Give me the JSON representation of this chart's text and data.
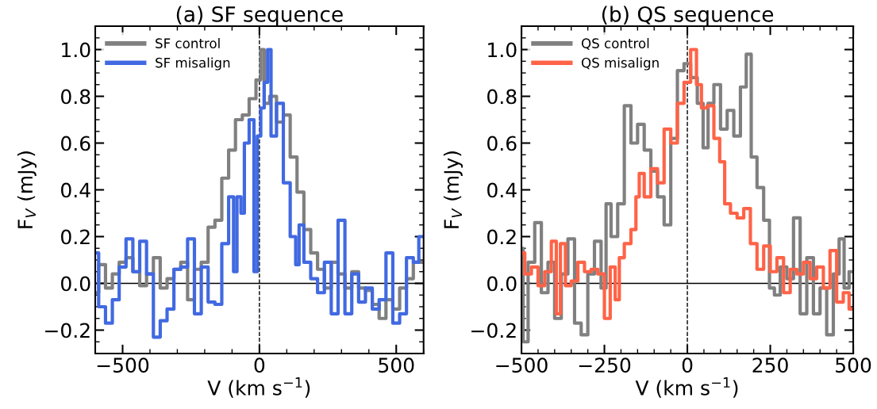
{
  "chart_data": [
    {
      "type": "step",
      "title": "(a) SF sequence",
      "xlabel": "V (km s$^{−1}$)",
      "ylabel": "F$_{V}$ (mJy)",
      "xlim": [
        -600,
        600
      ],
      "xticks": [
        -500,
        0,
        500
      ],
      "ylim": [
        -0.3,
        1.1
      ],
      "yticks": [
        {
          "value": -0.2,
          "label": "−0.2"
        },
        {
          "value": 0,
          "label": "0.0"
        },
        {
          "value": 0.2,
          "label": "0.2"
        },
        {
          "value": 0.4,
          "label": "0.4"
        },
        {
          "value": 0.6,
          "label": "0.6"
        },
        {
          "value": 0.8,
          "label": "0.8"
        },
        {
          "value": 1.0,
          "label": "1.0"
        }
      ],
      "grid": false,
      "legend": "top left",
      "marker": "none",
      "line_style": "solid",
      "ref_lines": [
        {
          "axis": "x",
          "value": 0,
          "label": null,
          "color": "#000000",
          "line_style": "dashed"
        },
        {
          "axis": "y",
          "value": 0,
          "label": null,
          "color": "#000000",
          "line_style": "solid"
        }
      ],
      "series": [
        {
          "name": "SF control",
          "color": "#808080",
          "x": [
            -600,
            -575,
            -550,
            -525,
            -500,
            -475,
            -450,
            -425,
            -400,
            -375,
            -350,
            -325,
            -300,
            -275,
            -250,
            -225,
            -200,
            -175,
            -150,
            -125,
            -100,
            -75,
            -50,
            -25,
            0,
            10,
            25,
            50,
            75,
            100,
            125,
            150,
            175,
            200,
            225,
            250,
            275,
            300,
            325,
            350,
            375,
            400,
            425,
            450,
            475,
            500,
            525,
            550,
            575,
            600
          ],
          "values": [
            -0.04,
            0.08,
            -0.02,
            0.04,
            0.09,
            0.11,
            0.05,
            -0.01,
            0.04,
            0.11,
            -0.02,
            0.02,
            0.06,
            0.09,
            -0.07,
            0.06,
            0.09,
            0.24,
            0.27,
            0.45,
            0.57,
            0.7,
            0.72,
            0.79,
            0.87,
            1.0,
            0.77,
            0.8,
            0.69,
            0.72,
            0.54,
            0.39,
            0.23,
            0.13,
            0.06,
            -0.02,
            0.09,
            0.04,
            -0.02,
            0.05,
            -0.02,
            -0.03,
            -0.09,
            -0.15,
            -0.07,
            -0.11,
            -0.02,
            0.02,
            0.09,
            0.09
          ]
        },
        {
          "name": "SF misalign",
          "color": "#4169e1",
          "x": [
            -600,
            -575,
            -550,
            -525,
            -500,
            -475,
            -450,
            -425,
            -400,
            -375,
            -350,
            -325,
            -300,
            -275,
            -250,
            -225,
            -200,
            -175,
            -150,
            -125,
            -100,
            -89,
            -75,
            -60,
            -50,
            -25,
            -15,
            0,
            10,
            25,
            35,
            50,
            75,
            100,
            125,
            140,
            150,
            175,
            200,
            225,
            250,
            275,
            300,
            325,
            350,
            375,
            400,
            425,
            450,
            475,
            500,
            525,
            550,
            575,
            590,
            600
          ],
          "values": [
            0.13,
            -0.1,
            -0.17,
            -0.07,
            0.07,
            0.19,
            0.05,
            0.18,
            0.04,
            -0.23,
            -0.16,
            -0.11,
            0.06,
            0.07,
            0.19,
            -0.13,
            0.07,
            -0.08,
            -0.09,
            0.17,
            0.37,
            0.05,
            0.37,
            0.3,
            0.6,
            0.7,
            0.05,
            0.63,
            0.75,
            0.86,
            1.0,
            0.63,
            0.77,
            0.43,
            0.2,
            0.08,
            0.25,
            0.09,
            0.02,
            -0.04,
            0.09,
            -0.13,
            0.27,
            -0.13,
            0.04,
            -0.08,
            -0.02,
            -0.11,
            -0.07,
            0.13,
            -0.17,
            -0.13,
            0.11,
            0.09,
            0.2,
            0.2
          ]
        }
      ]
    },
    {
      "type": "step",
      "title": "(b) QS sequence",
      "xlabel": "V (km s$^{−1}$)",
      "ylabel": "F$_{V}$ (mJy)",
      "xlim": [
        -500,
        500
      ],
      "xticks": [
        -500,
        -250,
        0,
        250,
        500
      ],
      "ylim": [
        -0.3,
        1.1
      ],
      "yticks": [
        {
          "value": -0.2,
          "label": "−0.2"
        },
        {
          "value": 0,
          "label": "0.0"
        },
        {
          "value": 0.2,
          "label": "0.2"
        },
        {
          "value": 0.4,
          "label": "0.4"
        },
        {
          "value": 0.6,
          "label": "0.6"
        },
        {
          "value": 0.8,
          "label": "0.8"
        },
        {
          "value": 1.0,
          "label": "1.0"
        }
      ],
      "grid": false,
      "legend": "top left",
      "marker": "none",
      "line_style": "solid",
      "ref_lines": [
        {
          "axis": "x",
          "value": 0,
          "label": null,
          "color": "#000000",
          "line_style": "dashed"
        },
        {
          "axis": "y",
          "value": 0,
          "label": null,
          "color": "#000000",
          "line_style": "solid"
        }
      ],
      "series": [
        {
          "name": "QS control",
          "color": "#808080",
          "x": [
            -500,
            -490,
            -470,
            -450,
            -430,
            -410,
            -390,
            -370,
            -350,
            -330,
            -310,
            -290,
            -270,
            -250,
            -240,
            -220,
            -200,
            -180,
            -160,
            -140,
            -120,
            -100,
            -80,
            -60,
            -40,
            -20,
            0,
            20,
            40,
            55,
            70,
            90,
            110,
            130,
            150,
            170,
            185,
            200,
            220,
            240,
            255,
            270,
            290,
            310,
            330,
            350,
            370,
            390,
            410,
            430,
            450,
            465,
            480,
            495,
            500
          ],
          "values": [
            0.15,
            -0.25,
            0.09,
            0.26,
            -0.04,
            0.09,
            -0.15,
            0.04,
            0.19,
            -0.17,
            -0.22,
            0.04,
            0.18,
            -0.02,
            0.34,
            0.2,
            0.34,
            0.76,
            0.6,
            0.68,
            0.57,
            0.48,
            0.37,
            0.25,
            0.62,
            0.91,
            0.94,
            0.88,
            0.77,
            0.58,
            0.77,
            0.85,
            0.66,
            0.74,
            0.63,
            0.84,
            0.98,
            0.54,
            0.41,
            0.27,
            -0.02,
            -0.05,
            0.07,
            0.02,
            0.28,
            -0.13,
            0.11,
            -0.13,
            -0.02,
            -0.22,
            0.04,
            0.19,
            -0.02,
            0.05,
            0.05
          ]
        },
        {
          "name": "QS misalign",
          "color": "#ff6347",
          "x": [
            -500,
            -480,
            -460,
            -440,
            -420,
            -400,
            -390,
            -375,
            -360,
            -340,
            -320,
            -300,
            -280,
            -260,
            -240,
            -225,
            -210,
            -200,
            -180,
            -160,
            -150,
            -140,
            -120,
            -100,
            -80,
            -60,
            -40,
            -20,
            0,
            20,
            35,
            50,
            70,
            90,
            105,
            120,
            140,
            160,
            180,
            200,
            220,
            240,
            260,
            280,
            300,
            320,
            340,
            360,
            380,
            400,
            420,
            440,
            460,
            480,
            495,
            500
          ],
          "values": [
            0.13,
            0.04,
            0.07,
            -0.01,
            0.05,
            0.18,
            -0.13,
            0.17,
            -0.01,
            0.01,
            0.09,
            0.05,
            0.06,
            0.04,
            -0.15,
            0.07,
            -0.07,
            0.11,
            0.17,
            0.23,
            0.37,
            0.47,
            0.37,
            0.49,
            0.43,
            0.66,
            0.6,
            0.77,
            0.86,
            1.0,
            0.85,
            0.75,
            0.76,
            0.62,
            0.52,
            0.34,
            0.3,
            0.28,
            0.32,
            0.17,
            0.06,
            0.16,
            0.05,
            0.11,
            -0.04,
            0.06,
            0.04,
            0.09,
            0.02,
            0.07,
            -0.02,
            0.14,
            -0.08,
            -0.04,
            -0.11,
            -0.11
          ]
        }
      ]
    }
  ]
}
